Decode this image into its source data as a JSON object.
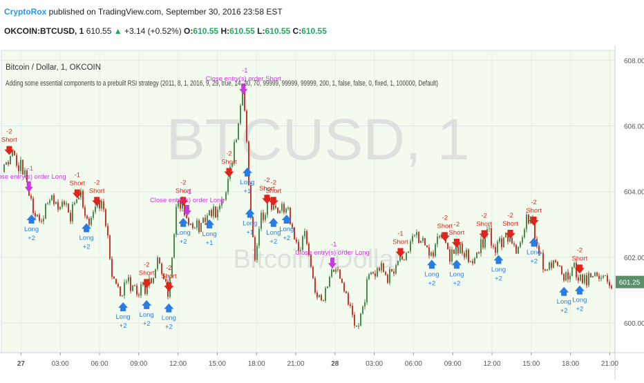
{
  "header": {
    "author": "CryptoRox",
    "published_text": " published on TradingView.com, September 30, 2016 23:58 EST",
    "symbol": "OKCOIN:BTCUSD, 1",
    "last": "610.55",
    "change": "+3.14 (+0.52%)",
    "o_label": "O:",
    "o": "610.55",
    "h_label": "H:",
    "h": "610.55",
    "l_label": "L:",
    "l": "610.55",
    "c_label": "C:",
    "c": "610.55"
  },
  "chart_data": {
    "type": "candlestick",
    "title": "Bitcoin / Dollar, 1, OKCOIN",
    "subtitle": "Adding some essential components to a prebuilt RSI strategy (2011, 8, 1, 2016, 9, 29, true, 14, 30, 70, 99999, 99999, 99999, 200, 1, false, false, 0, fixed, 1, 100000, Default)",
    "watermark": "BTCUSD, 1",
    "watermark_sub": "Bitcoin / Dollar",
    "price_label": "601.25",
    "ylim": [
      599.1,
      608.3
    ],
    "y_ticks": [
      "600.00",
      "602.00",
      "604.00",
      "606.00",
      "608.00"
    ],
    "x_ticks": [
      "27",
      "03:00",
      "06:00",
      "09:00",
      "12:00",
      "15:00",
      "18:00",
      "21:00",
      "28",
      "03:00",
      "06:00",
      "09:00",
      "12:00",
      "15:00",
      "18:00",
      "21:00"
    ],
    "x_range_hours": [
      -1.5,
      45.4
    ],
    "price_path": [
      [
        -1.5,
        604.6
      ],
      [
        -0.7,
        605.2
      ],
      [
        -0.2,
        604.9
      ],
      [
        0.3,
        604.4
      ],
      [
        0.8,
        603.6
      ],
      [
        1.5,
        603.2
      ],
      [
        2.2,
        603.9
      ],
      [
        3.0,
        603.6
      ],
      [
        3.8,
        603.3
      ],
      [
        4.5,
        603.9
      ],
      [
        5.3,
        603.0
      ],
      [
        6.0,
        603.7
      ],
      [
        6.3,
        603.3
      ],
      [
        7.0,
        601.5
      ],
      [
        7.6,
        600.8
      ],
      [
        8.2,
        601.2
      ],
      [
        9.0,
        601.0
      ],
      [
        9.7,
        601.0
      ],
      [
        10.5,
        601.9
      ],
      [
        11.3,
        600.9
      ],
      [
        12.0,
        603.9
      ],
      [
        12.8,
        603.1
      ],
      [
        13.6,
        602.9
      ],
      [
        14.3,
        603.5
      ],
      [
        15.0,
        603.2
      ],
      [
        15.7,
        603.9
      ],
      [
        16.2,
        605.1
      ],
      [
        16.6,
        606.0
      ],
      [
        16.9,
        607.3
      ],
      [
        17.1,
        606.5
      ],
      [
        17.4,
        604.3
      ],
      [
        17.9,
        601.7
      ],
      [
        18.4,
        603.3
      ],
      [
        19.0,
        603.7
      ],
      [
        19.6,
        603.3
      ],
      [
        20.3,
        603.6
      ],
      [
        21.0,
        602.3
      ],
      [
        21.7,
        602.6
      ],
      [
        22.4,
        601.1
      ],
      [
        23.1,
        600.7
      ],
      [
        23.8,
        601.6
      ],
      [
        24.5,
        601.3
      ],
      [
        25.0,
        600.7
      ],
      [
        25.5,
        599.7
      ],
      [
        26.0,
        600.4
      ],
      [
        26.6,
        601.4
      ],
      [
        27.3,
        601.8
      ],
      [
        28.0,
        601.3
      ],
      [
        28.7,
        601.9
      ],
      [
        29.4,
        602.0
      ],
      [
        30.1,
        602.6
      ],
      [
        30.8,
        602.4
      ],
      [
        31.5,
        602.2
      ],
      [
        32.2,
        602.6
      ],
      [
        32.9,
        602.0
      ],
      [
        33.6,
        602.4
      ],
      [
        34.3,
        601.9
      ],
      [
        35.0,
        602.2
      ],
      [
        35.7,
        602.7
      ],
      [
        36.4,
        602.3
      ],
      [
        37.1,
        602.8
      ],
      [
        37.8,
        602.1
      ],
      [
        38.5,
        603.0
      ],
      [
        39.0,
        603.2
      ],
      [
        39.4,
        602.6
      ],
      [
        40.1,
        601.6
      ],
      [
        40.8,
        602.0
      ],
      [
        41.5,
        601.4
      ],
      [
        42.2,
        601.8
      ],
      [
        42.9,
        601.3
      ],
      [
        43.6,
        601.4
      ],
      [
        44.3,
        601.6
      ],
      [
        44.9,
        601.4
      ],
      [
        45.4,
        600.9
      ]
    ],
    "signals": [
      {
        "t": -0.9,
        "kind": "short",
        "label": "Short",
        "value": "-2"
      },
      {
        "t": 0.6,
        "kind": "close",
        "label": "Close entry(s) order Long",
        "value": "-1"
      },
      {
        "t": 0.8,
        "kind": "long",
        "label": "Long",
        "value": "+2"
      },
      {
        "t": 4.3,
        "kind": "short",
        "label": "Short",
        "value": "-1"
      },
      {
        "t": 5.8,
        "kind": "short",
        "label": "Short",
        "value": "-2"
      },
      {
        "t": 5.0,
        "kind": "long",
        "label": "Long",
        "value": "+2"
      },
      {
        "t": 7.8,
        "kind": "long",
        "label": "Long",
        "value": "+2"
      },
      {
        "t": 9.6,
        "kind": "short",
        "label": "Short",
        "value": "-2"
      },
      {
        "t": 9.6,
        "kind": "long",
        "label": "Long",
        "value": "+2"
      },
      {
        "t": 11.3,
        "kind": "short",
        "label": "Short",
        "value": "-2"
      },
      {
        "t": 11.3,
        "kind": "long",
        "label": "Long",
        "value": "+2"
      },
      {
        "t": 12.4,
        "kind": "short",
        "label": "Short",
        "value": "-2"
      },
      {
        "t": 12.4,
        "kind": "long",
        "label": "Long",
        "value": "+2"
      },
      {
        "t": 12.7,
        "kind": "close",
        "label": "Close entry(s) order Long",
        "value": "-1"
      },
      {
        "t": 14.4,
        "kind": "long",
        "label": "Long",
        "value": "+1"
      },
      {
        "t": 15.9,
        "kind": "short",
        "label": "Short",
        "value": "-2"
      },
      {
        "t": 17.0,
        "kind": "close",
        "label": "Close entry(s) order Short",
        "value": "-1"
      },
      {
        "t": 17.3,
        "kind": "long",
        "label": "Long",
        "value": "+1"
      },
      {
        "t": 17.5,
        "kind": "long",
        "label": "Long",
        "value": "+1"
      },
      {
        "t": 18.8,
        "kind": "short",
        "label": "Short",
        "value": "-2"
      },
      {
        "t": 19.3,
        "kind": "short",
        "label": "Short",
        "value": "-2"
      },
      {
        "t": 19.3,
        "kind": "long",
        "label": "Long",
        "value": "+2"
      },
      {
        "t": 20.3,
        "kind": "long",
        "label": "Long",
        "value": "+2"
      },
      {
        "t": 23.8,
        "kind": "close",
        "label": "Close entry(s) order Long",
        "value": "-1"
      },
      {
        "t": 29.0,
        "kind": "short",
        "label": "Short",
        "value": "-1"
      },
      {
        "t": 31.4,
        "kind": "long",
        "label": "Long",
        "value": "+2"
      },
      {
        "t": 32.4,
        "kind": "short",
        "label": "Short",
        "value": "-2"
      },
      {
        "t": 33.3,
        "kind": "short",
        "label": "Short",
        "value": "-2"
      },
      {
        "t": 33.3,
        "kind": "long",
        "label": "Long",
        "value": "+2"
      },
      {
        "t": 35.4,
        "kind": "short",
        "label": "Short",
        "value": "-2"
      },
      {
        "t": 36.5,
        "kind": "long",
        "label": "Long",
        "value": "+2"
      },
      {
        "t": 37.4,
        "kind": "short",
        "label": "Short",
        "value": "-2"
      },
      {
        "t": 39.2,
        "kind": "short",
        "label": "Short",
        "value": "-2"
      },
      {
        "t": 39.2,
        "kind": "long",
        "label": "Long",
        "value": "+2"
      },
      {
        "t": 41.5,
        "kind": "long",
        "label": "Long",
        "value": "+2"
      },
      {
        "t": 42.7,
        "kind": "short",
        "label": "Short",
        "value": "-2"
      },
      {
        "t": 42.7,
        "kind": "long",
        "label": "Long",
        "value": "+2"
      }
    ]
  }
}
